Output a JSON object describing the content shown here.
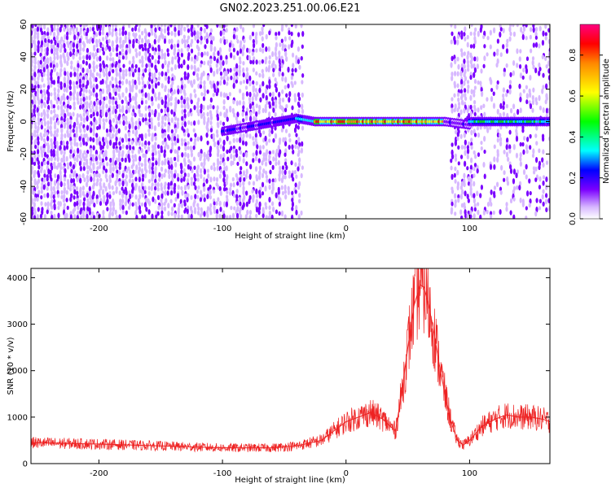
{
  "title": "GN02.2023.251.00.06.E21",
  "colors": {
    "snr_line": "#ee2222",
    "cmap": [
      "#ffffff",
      "#d7b8ff",
      "#7b00ff",
      "#0000ff",
      "#00ffff",
      "#00ff00",
      "#ffff00",
      "#ff8800",
      "#ff0000",
      "#ff0080"
    ]
  },
  "chart_data": [
    {
      "type": "heatmap",
      "xlabel": "Height of straight line (km)",
      "ylabel": "Frequency (Hz)",
      "xlim": [
        -255,
        165
      ],
      "ylim": [
        -60,
        60
      ],
      "xticks": [
        -200,
        -100,
        0,
        100
      ],
      "yticks": [
        -60,
        -40,
        -20,
        0,
        20,
        40,
        60
      ],
      "colorbar": {
        "label": "Normalized spectral amplitude",
        "range": [
          0.0,
          0.95
        ],
        "ticks": [
          "0.0",
          "0.2",
          "0.4",
          "0.6",
          "0.8"
        ]
      },
      "features": {
        "noise_regions_km": [
          [
            -255,
            -35
          ],
          [
            85,
            165
          ]
        ],
        "carrier_segments": [
          {
            "x_start": -100,
            "x_end": -40,
            "freq_start_hz": -6,
            "freq_end_hz": 2,
            "amplitude": 0.3
          },
          {
            "x_start": -40,
            "x_end": -25,
            "freq_start_hz": 2,
            "freq_end_hz": 0,
            "amplitude": 0.45
          },
          {
            "x_start": -25,
            "x_end": 80,
            "freq_start_hz": 0,
            "freq_end_hz": 0,
            "amplitude": 0.95
          },
          {
            "x_start": 80,
            "x_end": 100,
            "freq_start_hz": 0,
            "freq_end_hz": -2,
            "amplitude": 0.25
          },
          {
            "x_start": 100,
            "x_end": 165,
            "freq_start_hz": 0,
            "freq_end_hz": 0,
            "amplitude": 0.55
          }
        ]
      }
    },
    {
      "type": "line",
      "xlabel": "Height of straight line (km)",
      "ylabel": "SNR (10 * v/v)",
      "xlim": [
        -255,
        165
      ],
      "ylim": [
        0,
        4200
      ],
      "xticks": [
        -200,
        -100,
        0,
        100
      ],
      "yticks": [
        0,
        1000,
        2000,
        3000,
        4000
      ],
      "series": [
        {
          "x": [
            -255,
            -200,
            -150,
            -100,
            -60,
            -40,
            -20,
            -10,
            0,
            10,
            20,
            30,
            40,
            45,
            50,
            55,
            60,
            63,
            66,
            70,
            75,
            80,
            85,
            90,
            95,
            100,
            110,
            120,
            130,
            140,
            150,
            160,
            165
          ],
          "y": [
            450,
            420,
            380,
            340,
            340,
            380,
            500,
            700,
            900,
            1000,
            1100,
            950,
            700,
            1500,
            2500,
            3400,
            3850,
            3800,
            3500,
            3000,
            2200,
            1500,
            900,
            500,
            400,
            500,
            800,
            950,
            1050,
            1000,
            1000,
            950,
            900
          ]
        }
      ]
    }
  ]
}
